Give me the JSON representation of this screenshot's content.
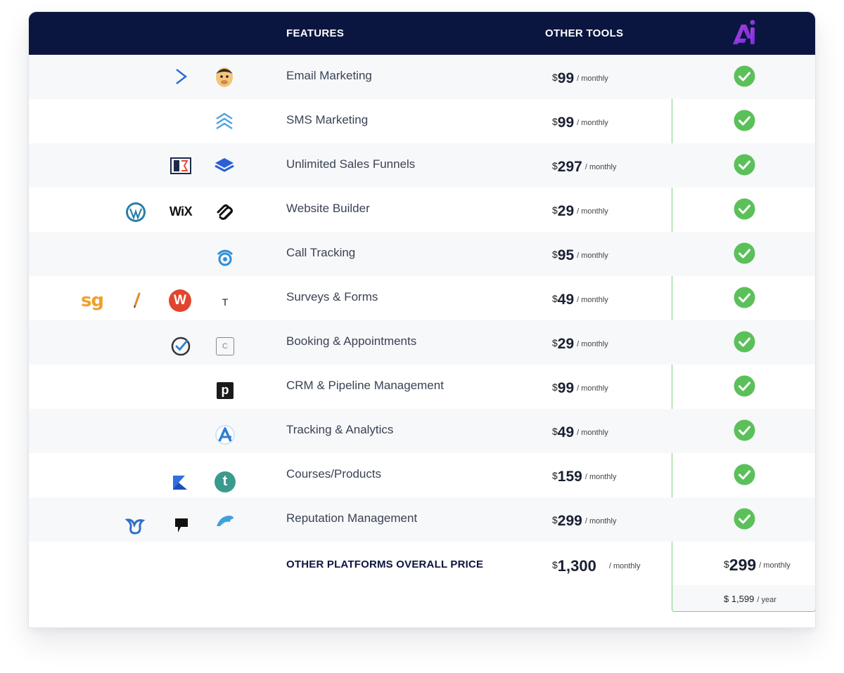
{
  "header": {
    "features_label": "FEATURES",
    "other_tools_label": "OTHER TOOLS",
    "brand_logo": "ai-logo-icon",
    "brand_colors": [
      "#6a2bd9",
      "#b040e0"
    ]
  },
  "currency": "$",
  "rows": [
    {
      "feature": "Email Marketing",
      "amount": "99",
      "period": "/ monthly",
      "icons": [
        "activecampaign-icon",
        "mailchimp-icon"
      ],
      "included": true
    },
    {
      "feature": "SMS Marketing",
      "amount": "99",
      "period": "/ monthly",
      "icons": [
        "sms-chevrons-icon"
      ],
      "included": true
    },
    {
      "feature": "Unlimited Sales Funnels",
      "amount": "297",
      "period": "/ monthly",
      "icons": [
        "clickfunnels-icon",
        "layers-icon"
      ],
      "included": true
    },
    {
      "feature": "Website Builder",
      "amount": "29",
      "period": "/ monthly",
      "icons": [
        "wordpress-icon",
        "wix-icon",
        "squarespace-icon"
      ],
      "wix_text": "WiX",
      "included": true
    },
    {
      "feature": "Call Tracking",
      "amount": "95",
      "period": "/ monthly",
      "icons": [
        "callrail-icon"
      ],
      "included": true
    },
    {
      "feature": "Surveys & Forms",
      "amount": "49",
      "period": "/ monthly",
      "icons": [
        "surveygizmo-icon",
        "feather-icon",
        "wufoo-icon",
        "typeform-icon"
      ],
      "sg_text": "sg",
      "w_text": "W",
      "t_text": "T",
      "included": true
    },
    {
      "feature": "Booking & Appointments",
      "amount": "29",
      "period": "/ monthly",
      "icons": [
        "acuity-check-icon",
        "calendly-icon"
      ],
      "c_text": "C",
      "included": true
    },
    {
      "feature": "CRM & Pipeline Management",
      "amount": "99",
      "period": "/ monthly",
      "icons": [
        "pipedrive-icon"
      ],
      "p_text": "p",
      "included": true
    },
    {
      "feature": "Tracking & Analytics",
      "amount": "49",
      "period": "/ monthly",
      "icons": [
        "analytics-a-icon"
      ],
      "included": true
    },
    {
      "feature": "Courses/Products",
      "amount": "159",
      "period": "/ monthly",
      "icons": [
        "kajabi-icon",
        "teachable-icon"
      ],
      "t_text": "t",
      "included": true
    },
    {
      "feature": "Reputation Management",
      "amount": "299",
      "period": "/ monthly",
      "icons": [
        "birdeye-icon",
        "podium-icon",
        "reputation-wave-icon"
      ],
      "included": true
    }
  ],
  "total": {
    "label": "OTHER PLATFORMS OVERALL PRICE",
    "amount": "1,300",
    "period": "/ monthly"
  },
  "ours": {
    "amount": "299",
    "period": "/ monthly",
    "yearly_amount": "$ 1,599",
    "yearly_period": "/ year",
    "check_color": "#5cc05a",
    "border_color": "#7fd07c"
  }
}
